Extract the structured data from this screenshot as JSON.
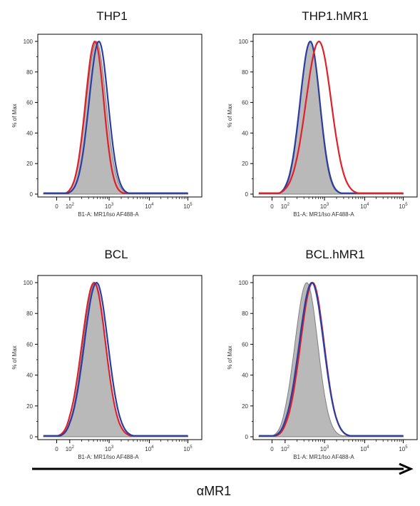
{
  "figure": {
    "bottom_axis_label": "αMR1"
  },
  "chart_data": [
    {
      "type": "area",
      "title": "THP1",
      "xlabel": "B1-A: MR1/Iso AF488-A",
      "ylabel": "% of Max",
      "x_scale": "biexponential",
      "x_ticks": [
        "0",
        "10^2",
        "10^3",
        "10^4",
        "10^5"
      ],
      "y_ticks": [
        0,
        20,
        40,
        60,
        80,
        100
      ],
      "ylim": [
        0,
        100
      ],
      "series": [
        {
          "style": "gray-filled",
          "color": "#b4b4b4",
          "peak_log": 2.68,
          "width": 0.26
        },
        {
          "style": "red-line",
          "color": "#e0202a",
          "peak_log": 2.64,
          "width": 0.24
        },
        {
          "style": "blue-line",
          "color": "#2b3ea0",
          "peak_log": 2.74,
          "width": 0.25
        }
      ]
    },
    {
      "type": "area",
      "title": "THP1.hMR1",
      "xlabel": "B1-A: MR1/Iso AF488-A",
      "ylabel": "% of Max",
      "x_scale": "biexponential",
      "x_ticks": [
        "0",
        "10^2",
        "10^3",
        "10^4",
        "10^5"
      ],
      "y_ticks": [
        0,
        20,
        40,
        60,
        80,
        100
      ],
      "ylim": [
        0,
        100
      ],
      "series": [
        {
          "style": "gray-filled",
          "color": "#b4b4b4",
          "peak_log": 2.64,
          "width": 0.25
        },
        {
          "style": "blue-line",
          "color": "#2b3ea0",
          "peak_log": 2.64,
          "width": 0.26
        },
        {
          "style": "red-line",
          "color": "#e0202a",
          "peak_log": 2.86,
          "width": 0.33
        }
      ]
    },
    {
      "type": "area",
      "title": "BCL",
      "xlabel": "B1-A: MR1/Iso AF488-A",
      "ylabel": "% of Max",
      "x_scale": "biexponential",
      "x_ticks": [
        "0",
        "10^2",
        "10^3",
        "10^4",
        "10^5"
      ],
      "y_ticks": [
        0,
        20,
        40,
        60,
        80,
        100
      ],
      "ylim": [
        0,
        100
      ],
      "series": [
        {
          "style": "gray-filled",
          "color": "#b4b4b4",
          "peak_log": 2.64,
          "width": 0.3
        },
        {
          "style": "red-line",
          "color": "#e0202a",
          "peak_log": 2.62,
          "width": 0.31
        },
        {
          "style": "blue-line",
          "color": "#2b3ea0",
          "peak_log": 2.68,
          "width": 0.31
        }
      ]
    },
    {
      "type": "area",
      "title": "BCL.hMR1",
      "xlabel": "B1-A: MR1/Iso AF488-A",
      "ylabel": "% of Max",
      "x_scale": "biexponential",
      "x_ticks": [
        "0",
        "10^2",
        "10^3",
        "10^4",
        "10^5"
      ],
      "y_ticks": [
        0,
        20,
        40,
        60,
        80,
        100
      ],
      "ylim": [
        0,
        100
      ],
      "series": [
        {
          "style": "gray-filled",
          "color": "#b4b4b4",
          "peak_log": 2.55,
          "width": 0.3
        },
        {
          "style": "red-line",
          "color": "#e0202a",
          "peak_log": 2.7,
          "width": 0.31
        },
        {
          "style": "blue-line",
          "color": "#2b3ea0",
          "peak_log": 2.68,
          "width": 0.32
        }
      ]
    }
  ]
}
